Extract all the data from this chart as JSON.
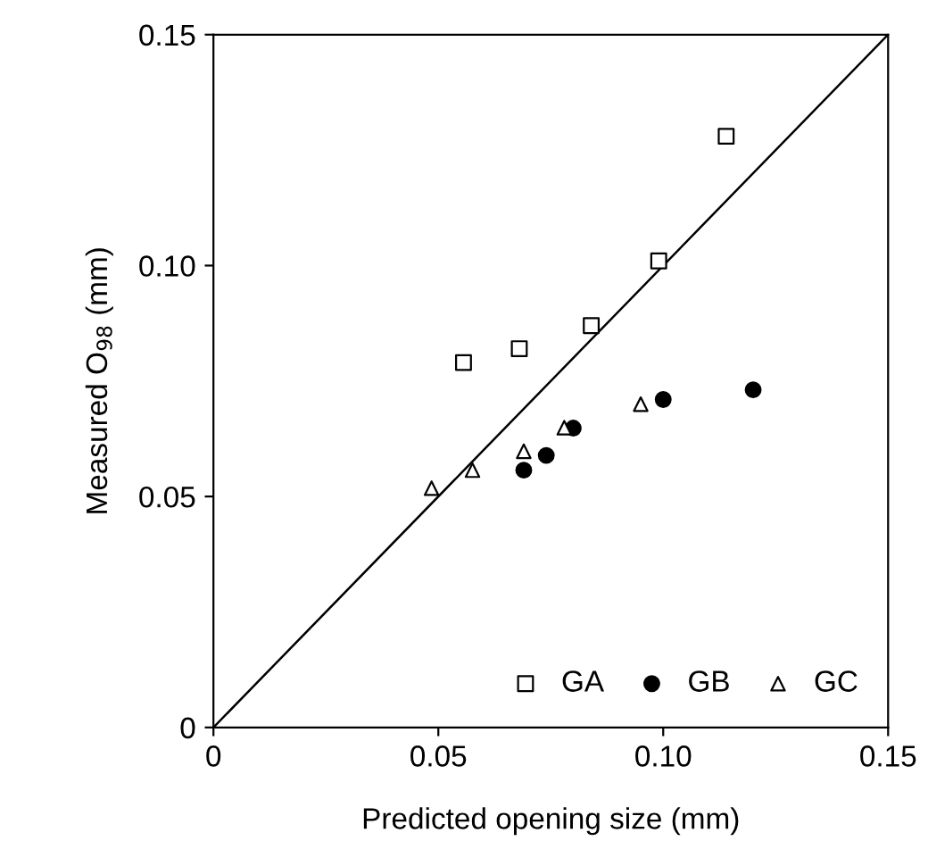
{
  "chart_data": {
    "type": "scatter",
    "xlabel": "Predicted opening size (mm)",
    "ylabel": "Measured O$_{98}$ (mm)",
    "xlim": [
      0,
      0.15
    ],
    "ylim": [
      0,
      0.15
    ],
    "xticks": [
      0,
      {
        "value": 0.05,
        "label": "0.05"
      },
      {
        "value": 0.1,
        "label": "0.10"
      },
      {
        "value": 0.15,
        "label": "0.15"
      }
    ],
    "yticks": [
      0,
      {
        "value": 0.05,
        "label": "0.05"
      },
      {
        "value": 0.1,
        "label": "0.10"
      },
      {
        "value": 0.15,
        "label": "0.15"
      }
    ],
    "grid": false,
    "legend": "bottom right",
    "series": [
      {
        "name": "GA",
        "color": "#000000",
        "marker": "square",
        "x": [
          0.0556,
          0.068,
          0.084,
          0.099,
          0.114
        ],
        "values": [
          0.079,
          0.082,
          0.087,
          0.101,
          0.128
        ]
      },
      {
        "name": "GB",
        "color": "#000000",
        "marker": "circle",
        "x": [
          0.069,
          0.074,
          0.08,
          0.1,
          0.12
        ],
        "values": [
          0.0557,
          0.0589,
          0.0648,
          0.071,
          0.0731
        ]
      },
      {
        "name": "GC",
        "color": "#000000",
        "marker": "triangle",
        "x": [
          0.0485,
          0.0576,
          0.069,
          0.078,
          0.095
        ],
        "values": [
          0.0518,
          0.0557,
          0.0598,
          0.0649,
          0.07
        ]
      },
      {
        "type": "line",
        "color": "#000000",
        "marker": "none",
        "line_style": "solid",
        "x": [
          0,
          0.15
        ],
        "values": [
          0,
          0.15
        ]
      }
    ]
  }
}
